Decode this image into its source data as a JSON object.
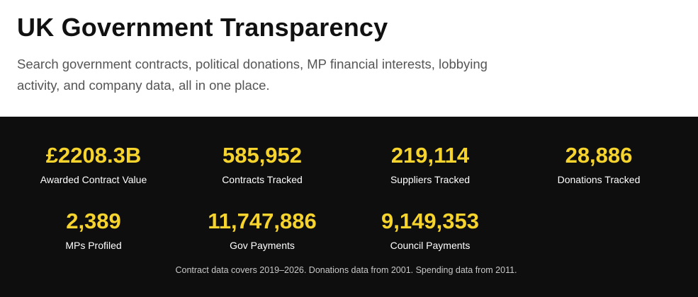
{
  "header": {
    "title": "UK Government Transparency",
    "subtitle": "Search government contracts, political donations, MP financial interests, lobbying activity, and company data, all in one place."
  },
  "stats": [
    {
      "value": "£2208.3B",
      "label": "Awarded Contract Value"
    },
    {
      "value": "585,952",
      "label": "Contracts Tracked"
    },
    {
      "value": "219,114",
      "label": "Suppliers Tracked"
    },
    {
      "value": "28,886",
      "label": "Donations Tracked"
    },
    {
      "value": "2,389",
      "label": "MPs Profiled"
    },
    {
      "value": "11,747,886",
      "label": "Gov Payments"
    },
    {
      "value": "9,149,353",
      "label": "Council Payments"
    }
  ],
  "footnote": "Contract data covers 2019–2026. Donations data from 2001. Spending data from 2011.",
  "colors": {
    "accent": "#f6d32d",
    "band_background": "#0d0e0d"
  }
}
